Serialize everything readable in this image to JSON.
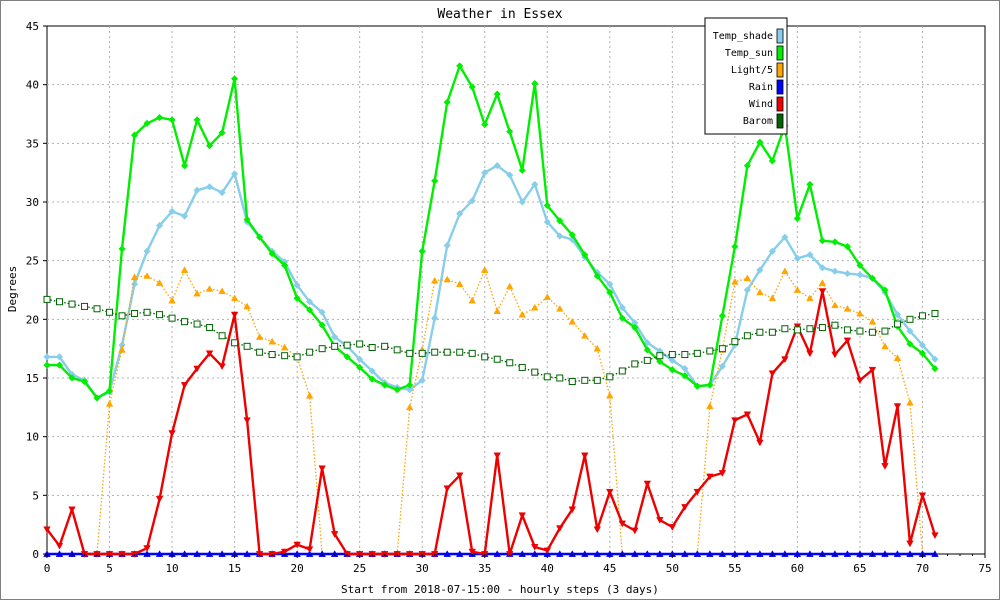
{
  "chart_data": {
    "type": "line",
    "title": "Weather in Essex",
    "xlabel": "Start from 2018-07-15:00 - hourly steps (3 days)",
    "ylabel": "Degrees",
    "xlim": [
      0,
      75
    ],
    "ylim": [
      0,
      45
    ],
    "x_ticks": [
      0,
      5,
      10,
      15,
      20,
      25,
      30,
      35,
      40,
      45,
      50,
      55,
      60,
      65,
      70,
      75
    ],
    "y_ticks": [
      0,
      5,
      10,
      15,
      20,
      25,
      30,
      35,
      40,
      45
    ],
    "grid": true,
    "legend_position": "top-right",
    "series": [
      {
        "name": "Temp_shade",
        "color": "#87ceeb",
        "marker": "diamond",
        "line": "solid",
        "values": [
          16.8,
          16.8,
          15.3,
          14.8,
          13.3,
          13.8,
          17.8,
          23.0,
          25.8,
          28.0,
          29.2,
          28.8,
          31.0,
          31.3,
          30.8,
          32.4,
          28.3,
          27.0,
          25.8,
          24.9,
          22.9,
          21.5,
          20.6,
          18.5,
          17.7,
          16.6,
          15.6,
          14.6,
          14.2,
          14.0,
          14.8,
          20.1,
          26.3,
          29.0,
          30.1,
          32.5,
          33.1,
          32.3,
          30.0,
          31.5,
          28.3,
          27.1,
          26.8,
          25.3,
          24.0,
          23.0,
          21.0,
          19.7,
          18.0,
          17.3,
          16.5,
          15.8,
          14.3,
          14.4,
          16.0,
          17.8,
          22.5,
          24.2,
          25.8,
          27.0,
          25.2,
          25.5,
          24.4,
          24.1,
          23.9,
          23.8,
          23.5,
          22.3,
          20.4,
          19.0,
          17.8,
          16.6
        ]
      },
      {
        "name": "Temp_sun",
        "color": "#00ee00",
        "marker": "diamond",
        "line": "solid",
        "values": [
          16.1,
          16.1,
          15.0,
          14.7,
          13.3,
          13.9,
          26.0,
          35.7,
          36.7,
          37.2,
          37.0,
          33.1,
          37.0,
          34.8,
          35.9,
          40.5,
          28.5,
          27.0,
          25.6,
          24.6,
          21.8,
          20.8,
          19.5,
          17.7,
          16.8,
          15.9,
          14.9,
          14.4,
          14.0,
          14.4,
          25.8,
          31.8,
          38.5,
          41.6,
          39.8,
          36.6,
          39.2,
          36.0,
          32.7,
          40.1,
          29.7,
          28.4,
          27.2,
          25.5,
          23.7,
          22.3,
          20.1,
          19.3,
          17.4,
          16.4,
          15.7,
          15.2,
          14.3,
          14.4,
          20.3,
          26.2,
          33.1,
          35.1,
          33.5,
          36.5,
          28.6,
          31.5,
          26.7,
          26.6,
          26.2,
          24.6,
          23.5,
          22.5,
          19.4,
          17.9,
          17.1,
          15.8
        ]
      },
      {
        "name": "Light/5",
        "color": "#ffa500",
        "marker": "triangle-up",
        "line": "dotted",
        "values": [
          0,
          0,
          0,
          0,
          0,
          12.8,
          17.4,
          23.6,
          23.7,
          23.1,
          21.6,
          24.2,
          22.2,
          22.6,
          22.4,
          21.8,
          21.1,
          18.5,
          18.1,
          17.6,
          16.8,
          13.5,
          0,
          0,
          0,
          0,
          0,
          0,
          0,
          12.5,
          17.4,
          23.3,
          23.4,
          23.0,
          21.6,
          24.2,
          20.7,
          22.8,
          20.4,
          21.0,
          21.9,
          20.9,
          19.8,
          18.6,
          17.5,
          13.5,
          0,
          0,
          0,
          0,
          0,
          0,
          0,
          12.6,
          17.4,
          23.2,
          23.5,
          22.3,
          21.8,
          24.1,
          22.5,
          21.8,
          23.1,
          21.2,
          20.9,
          20.5,
          19.8,
          17.7,
          16.7,
          12.9,
          0,
          0
        ]
      },
      {
        "name": "Rain",
        "color": "#0000ff",
        "marker": "triangle-up",
        "line": "solid",
        "values": [
          0,
          0,
          0,
          0,
          0,
          0,
          0,
          0,
          0,
          0,
          0,
          0,
          0,
          0,
          0,
          0,
          0,
          0,
          0,
          0,
          0,
          0,
          0,
          0,
          0,
          0,
          0,
          0,
          0,
          0,
          0,
          0,
          0,
          0,
          0,
          0,
          0,
          0,
          0,
          0,
          0,
          0,
          0,
          0,
          0,
          0,
          0,
          0,
          0,
          0,
          0,
          0,
          0,
          0,
          0,
          0,
          0,
          0,
          0,
          0,
          0,
          0,
          0,
          0,
          0,
          0,
          0,
          0,
          0,
          0,
          0,
          0
        ]
      },
      {
        "name": "Wind",
        "color": "#ee0000",
        "marker": "triangle-down",
        "line": "solid",
        "values": [
          2.1,
          0.7,
          3.8,
          0,
          0,
          0,
          0,
          0,
          0.5,
          4.7,
          10.3,
          14.4,
          15.8,
          17.1,
          16.0,
          20.4,
          11.4,
          0,
          0,
          0.2,
          0.8,
          0.4,
          7.3,
          1.7,
          0,
          0,
          0,
          0,
          0,
          0,
          0,
          0,
          5.6,
          6.7,
          0.2,
          0,
          8.4,
          0,
          3.3,
          0.6,
          0.3,
          2.2,
          3.8,
          8.4,
          2.1,
          5.3,
          2.6,
          2.0,
          6.0,
          2.9,
          2.3,
          4.0,
          5.3,
          6.6,
          6.9,
          11.4,
          11.9,
          9.5,
          15.4,
          16.6,
          19.4,
          17.1,
          22.4,
          17.0,
          18.2,
          14.8,
          15.7,
          7.5,
          12.6,
          0.9,
          5.0,
          1.6
        ]
      },
      {
        "name": "Barom",
        "color": "#006400",
        "marker": "square-open",
        "line": "dotted",
        "values": [
          21.7,
          21.5,
          21.3,
          21.1,
          20.9,
          20.6,
          20.3,
          20.5,
          20.6,
          20.4,
          20.1,
          19.8,
          19.6,
          19.3,
          18.6,
          18.0,
          17.7,
          17.2,
          17.0,
          16.9,
          16.8,
          17.2,
          17.5,
          17.7,
          17.8,
          17.9,
          17.6,
          17.7,
          17.4,
          17.1,
          17.1,
          17.2,
          17.2,
          17.2,
          17.1,
          16.8,
          16.6,
          16.3,
          15.9,
          15.5,
          15.1,
          15.0,
          14.7,
          14.8,
          14.8,
          15.1,
          15.6,
          16.2,
          16.5,
          16.9,
          17.0,
          17.0,
          17.1,
          17.3,
          17.5,
          18.1,
          18.6,
          18.9,
          18.9,
          19.2,
          19.1,
          19.2,
          19.3,
          19.5,
          19.1,
          19.0,
          18.9,
          19.0,
          19.6,
          20.0,
          20.3,
          20.5
        ]
      }
    ]
  }
}
